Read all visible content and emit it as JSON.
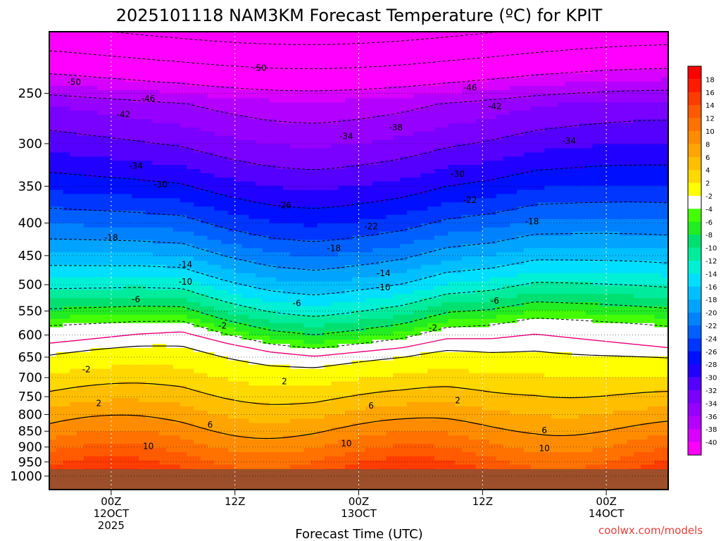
{
  "title": "2025101118 NAM3KM Forecast Temperature (ºC) for KPIT",
  "credit": "coolwx.com/models",
  "chart_data": {
    "type": "heatmap",
    "title": "2025101118 NAM3KM Forecast Temperature (ºC) for KPIT",
    "xlabel": "Forecast Time (UTC)",
    "ylabel": "",
    "x_range_hours": [
      -5,
      45
    ],
    "x_ticks": [
      {
        "hour": 0,
        "lines": [
          "00Z",
          "12OCT",
          "2025"
        ]
      },
      {
        "hour": 10,
        "lines": [
          "12Z"
        ]
      },
      {
        "hour": 20,
        "lines": [
          "00Z",
          "13OCT"
        ]
      },
      {
        "hour": 30,
        "lines": [
          "12Z"
        ]
      },
      {
        "hour": 40,
        "lines": [
          "00Z",
          "14OCT"
        ]
      }
    ],
    "y_scale": "log",
    "y_range_hPa": [
      1050,
      200
    ],
    "y_ticks": [
      250,
      300,
      350,
      400,
      450,
      500,
      550,
      600,
      650,
      700,
      750,
      800,
      850,
      900,
      950,
      1000
    ],
    "ground_pressure_hPa": 975,
    "colorbar": {
      "labels": [
        "18",
        "16",
        "14",
        "12",
        "10",
        "8",
        "6",
        "4",
        "2",
        "-2",
        "-4",
        "-6",
        "-8",
        "-10",
        "-12",
        "-14",
        "-16",
        "-18",
        "-20",
        "-22",
        "-24",
        "-26",
        "-28",
        "-30",
        "-32",
        "-34",
        "-36",
        "-38",
        "-40"
      ],
      "colors": [
        "#ff1a00",
        "#ff3c00",
        "#ff5a00",
        "#ff7200",
        "#ff8c00",
        "#ffa400",
        "#ffbe00",
        "#ffd800",
        "#ffff00",
        "#ffffff",
        "#44ff00",
        "#22ec22",
        "#00e070",
        "#00ec9c",
        "#00f0d6",
        "#00dfff",
        "#00bfff",
        "#00a4ff",
        "#0082ff",
        "#0060ff",
        "#0036ff",
        "#0010ff",
        "#2200ff",
        "#5500ff",
        "#7a00ff",
        "#9600ff",
        "#b400ff",
        "#d800ff",
        "#ff00ff"
      ]
    },
    "freezing_level_hPa": [
      600,
      590,
      580,
      575,
      600,
      620,
      630,
      620,
      610,
      590,
      590,
      580,
      590,
      600,
      610
    ],
    "contour_labels": [
      {
        "text": "-50",
        "x": 12,
        "p": 228
      },
      {
        "text": "-50",
        "x": -3,
        "p": 240
      },
      {
        "text": "-46",
        "x": 29,
        "p": 245
      },
      {
        "text": "-46",
        "x": 3,
        "p": 255
      },
      {
        "text": "-42",
        "x": 31,
        "p": 262
      },
      {
        "text": "-42",
        "x": 1,
        "p": 270
      },
      {
        "text": "-38",
        "x": 23,
        "p": 283
      },
      {
        "text": "-34",
        "x": 19,
        "p": 292
      },
      {
        "text": "-34",
        "x": 37,
        "p": 297
      },
      {
        "text": "-34",
        "x": 2,
        "p": 325
      },
      {
        "text": "-30",
        "x": 4,
        "p": 348
      },
      {
        "text": "-30",
        "x": 28,
        "p": 335
      },
      {
        "text": "-26",
        "x": 14,
        "p": 375
      },
      {
        "text": "-22",
        "x": 29,
        "p": 368
      },
      {
        "text": "-22",
        "x": 21,
        "p": 405
      },
      {
        "text": "-18",
        "x": 34,
        "p": 398
      },
      {
        "text": "-18",
        "x": 0,
        "p": 422
      },
      {
        "text": "-18",
        "x": 18,
        "p": 438
      },
      {
        "text": "-14",
        "x": 6,
        "p": 465
      },
      {
        "text": "-14",
        "x": 22,
        "p": 480
      },
      {
        "text": "-10",
        "x": 6,
        "p": 495
      },
      {
        "text": "-10",
        "x": 22,
        "p": 505
      },
      {
        "text": "-6",
        "x": 2,
        "p": 527
      },
      {
        "text": "-6",
        "x": 15,
        "p": 535
      },
      {
        "text": "-6",
        "x": 31,
        "p": 530
      },
      {
        "text": "-2",
        "x": 9,
        "p": 580
      },
      {
        "text": "-2",
        "x": 26,
        "p": 585
      },
      {
        "text": "-2",
        "x": -2,
        "p": 680
      },
      {
        "text": "2",
        "x": 14,
        "p": 710
      },
      {
        "text": "2",
        "x": 28,
        "p": 760
      },
      {
        "text": "2",
        "x": -1,
        "p": 768
      },
      {
        "text": "6",
        "x": 21,
        "p": 775
      },
      {
        "text": "6",
        "x": 8,
        "p": 830
      },
      {
        "text": "6",
        "x": 35,
        "p": 847
      },
      {
        "text": "10",
        "x": 3,
        "p": 897
      },
      {
        "text": "10",
        "x": 19,
        "p": 888
      },
      {
        "text": "10",
        "x": 35,
        "p": 905
      }
    ]
  }
}
